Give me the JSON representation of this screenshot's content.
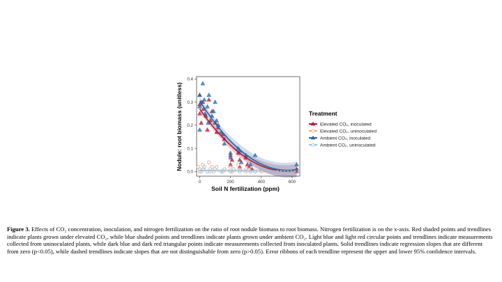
{
  "caption": {
    "label": "Figure 3.",
    "text": "Effects of CO₂ concentration, inoculation, and nitrogen fertilization on the ratio of root nodule biomass to root biomass. Nitrogen fertilization is on the x-axis. Red shaded points and trendlines indicate plants grown under elevated CO₂, while blue shaded points and trendlines indicate plants grown under ambient CO₂. Light blue and light red circular points and trendlines indicate measurements collected from uninoculated plants, while dark blue and dark red triangular points indicate measurements collected from inoculated plants. Solid trendlines indicate regression slopes that are different from zero (p<0.05), while dashed trendlines indicate slopes that are not distinguishable from zero (p>0.05). Error ribbons of each trendline represent the upper and lower 95% confidence intervals."
  },
  "chart_data": {
    "type": "scatter",
    "xlabel": "Soil N fertilization (ppm)",
    "ylabel": "Nodule: root biomass (unitless)",
    "xlim": [
      -20,
      650
    ],
    "ylim": [
      -0.02,
      0.41
    ],
    "x_ticks": [
      0,
      200,
      400,
      600
    ],
    "y_ticks": [
      0.0,
      0.1,
      0.2,
      0.3,
      0.4
    ],
    "y_tick_labels": [
      "0.0",
      "0.1",
      "0.2",
      "0.3",
      "0.4"
    ],
    "grid": false,
    "legend": {
      "title": "Treatment",
      "placement": "right"
    },
    "series": [
      {
        "name": "Elevated CO₂, inoculated",
        "marker": "triangle",
        "color": "#b2182b",
        "trend": {
          "style": "solid",
          "intercept": 0.27,
          "slope": -0.00095,
          "quad": 8.4e-07,
          "ci": 0.012
        },
        "points": [
          [
            0,
            0.33
          ],
          [
            0,
            0.29
          ],
          [
            0,
            0.25
          ],
          [
            10,
            0.21
          ],
          [
            20,
            0.3
          ],
          [
            25,
            0.27
          ],
          [
            40,
            0.24
          ],
          [
            50,
            0.18
          ],
          [
            60,
            0.31
          ],
          [
            70,
            0.22
          ],
          [
            80,
            0.26
          ],
          [
            100,
            0.21
          ],
          [
            110,
            0.17
          ],
          [
            120,
            0.19
          ],
          [
            150,
            0.16
          ],
          [
            160,
            0.14
          ],
          [
            200,
            0.07
          ],
          [
            200,
            0.03
          ],
          [
            210,
            0.05
          ],
          [
            250,
            0.08
          ],
          [
            260,
            0.05
          ],
          [
            260,
            0.02
          ],
          [
            300,
            0.06
          ],
          [
            310,
            0.03
          ],
          [
            320,
            0.02
          ],
          [
            340,
            0.01
          ],
          [
            630,
            0.01
          ],
          [
            630,
            0.0
          ]
        ]
      },
      {
        "name": "Elevated CO₂, uninoculated",
        "marker": "circle",
        "color": "#f4a582",
        "trend": {
          "style": "dashed",
          "intercept": 0.005,
          "slope": -3e-06,
          "quad": 0,
          "ci": 0.004
        },
        "points": [
          [
            -10,
            0.02
          ],
          [
            0,
            0.0
          ],
          [
            20,
            0.03
          ],
          [
            25,
            0.01
          ],
          [
            60,
            0.04
          ],
          [
            70,
            0.0
          ],
          [
            80,
            0.02
          ],
          [
            100,
            0.01
          ],
          [
            150,
            0.0
          ],
          [
            160,
            0.01
          ],
          [
            200,
            0.02
          ],
          [
            210,
            0.0
          ],
          [
            250,
            0.03
          ],
          [
            260,
            0.01
          ],
          [
            300,
            0.0
          ],
          [
            320,
            0.02
          ],
          [
            400,
            0.0
          ],
          [
            630,
            0.01
          ]
        ]
      },
      {
        "name": "Ambient CO₂, inoculated",
        "marker": "triangle",
        "color": "#2166ac",
        "trend": {
          "style": "solid",
          "intercept": 0.305,
          "slope": -0.00105,
          "quad": 9.2e-07,
          "ci": 0.015
        },
        "points": [
          [
            0,
            0.33
          ],
          [
            0,
            0.28
          ],
          [
            0,
            0.18
          ],
          [
            10,
            0.3
          ],
          [
            20,
            0.38
          ],
          [
            30,
            0.31
          ],
          [
            35,
            0.25
          ],
          [
            50,
            0.28
          ],
          [
            55,
            0.21
          ],
          [
            60,
            0.33
          ],
          [
            80,
            0.24
          ],
          [
            90,
            0.26
          ],
          [
            100,
            0.3
          ],
          [
            110,
            0.22
          ],
          [
            120,
            0.2
          ],
          [
            140,
            0.17
          ],
          [
            160,
            0.12
          ],
          [
            200,
            0.08
          ],
          [
            200,
            0.06
          ],
          [
            250,
            0.1
          ],
          [
            260,
            0.09
          ],
          [
            270,
            0.04
          ],
          [
            300,
            0.07
          ],
          [
            330,
            0.03
          ],
          [
            360,
            0.07
          ],
          [
            630,
            0.03
          ],
          [
            630,
            0.01
          ]
        ]
      },
      {
        "name": "Ambient CO₂, uninoculated",
        "marker": "circle",
        "color": "#92c5de",
        "trend": {
          "style": "dashed",
          "intercept": 0.004,
          "slope": -2e-06,
          "quad": 0,
          "ci": 0.004
        },
        "points": [
          [
            0,
            0.01
          ],
          [
            10,
            0.0
          ],
          [
            30,
            0.02
          ],
          [
            50,
            0.0
          ],
          [
            70,
            0.01
          ],
          [
            90,
            0.0
          ],
          [
            110,
            0.02
          ],
          [
            140,
            0.0
          ],
          [
            160,
            0.01
          ],
          [
            200,
            0.0
          ],
          [
            220,
            0.01
          ],
          [
            260,
            0.0
          ],
          [
            300,
            0.01
          ],
          [
            330,
            0.0
          ],
          [
            360,
            0.0
          ],
          [
            400,
            0.01
          ],
          [
            630,
            0.0
          ]
        ]
      }
    ]
  }
}
